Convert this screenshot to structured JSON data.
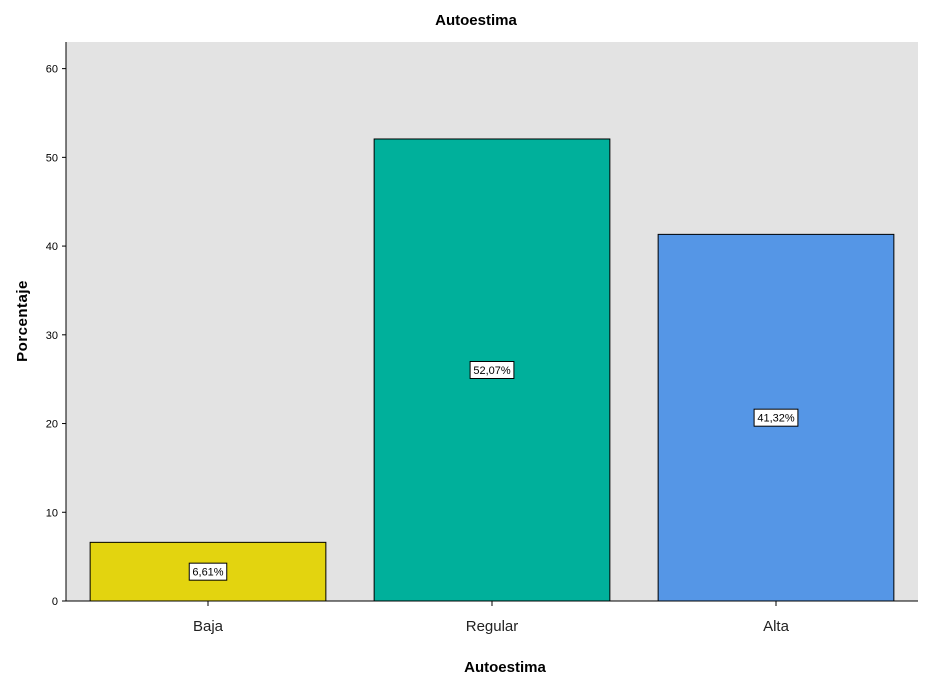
{
  "chart_data": {
    "type": "bar",
    "title": "Autoestima",
    "xlabel": "Autoestima",
    "ylabel": "Porcentaje",
    "categories": [
      "Baja",
      "Regular",
      "Alta"
    ],
    "values": [
      6.61,
      52.07,
      41.32
    ],
    "data_labels": [
      "6,61%",
      "52,07%",
      "41,32%"
    ],
    "colors": [
      "#e3d40f",
      "#00b09b",
      "#5596e6"
    ],
    "ylim": [
      0,
      63
    ],
    "yticks": [
      0,
      10,
      20,
      30,
      40,
      50,
      60
    ],
    "plot_background": "#e3e3e3",
    "grid": false,
    "legend": "none"
  }
}
